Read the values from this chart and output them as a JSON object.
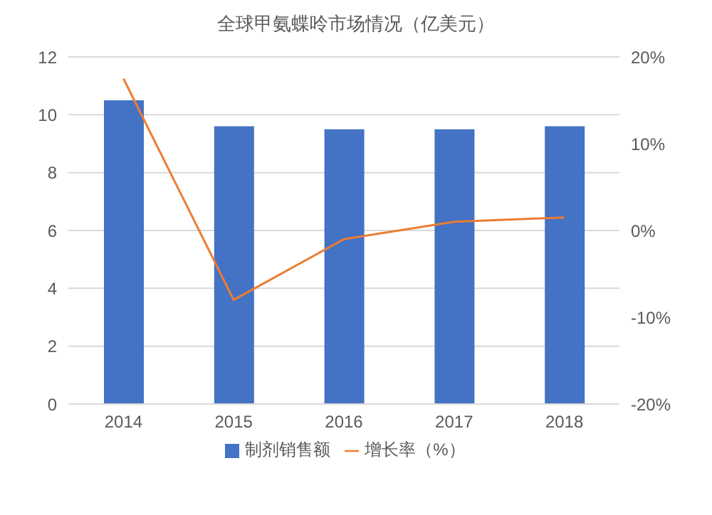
{
  "chart_data": {
    "type": "bar",
    "title": "全球甲氨蝶呤市场情况（亿美元）",
    "categories": [
      "2014",
      "2015",
      "2016",
      "2017",
      "2018"
    ],
    "series": [
      {
        "name": "制剂销售额",
        "color": "#4472c4",
        "values": [
          10.5,
          9.6,
          9.5,
          9.5,
          9.6
        ]
      },
      {
        "name": "增长率（%）",
        "type": "line",
        "axis": "y2",
        "color": "#ed7d31",
        "values": [
          17.5,
          -8,
          -1,
          1,
          1.5
        ]
      }
    ],
    "ylim": [
      0,
      12
    ],
    "yticks": [
      0,
      2,
      4,
      6,
      8,
      10,
      12
    ],
    "y2lim": [
      -20,
      20
    ],
    "y2ticks": [
      {
        "value": -20,
        "label": "-20%"
      },
      {
        "value": -10,
        "label": "-10%"
      },
      {
        "value": 0,
        "label": "0%"
      },
      {
        "value": 10,
        "label": "10%"
      },
      {
        "value": 20,
        "label": "20%"
      }
    ],
    "grid": "y",
    "legend": "bottom",
    "marker": "none"
  }
}
